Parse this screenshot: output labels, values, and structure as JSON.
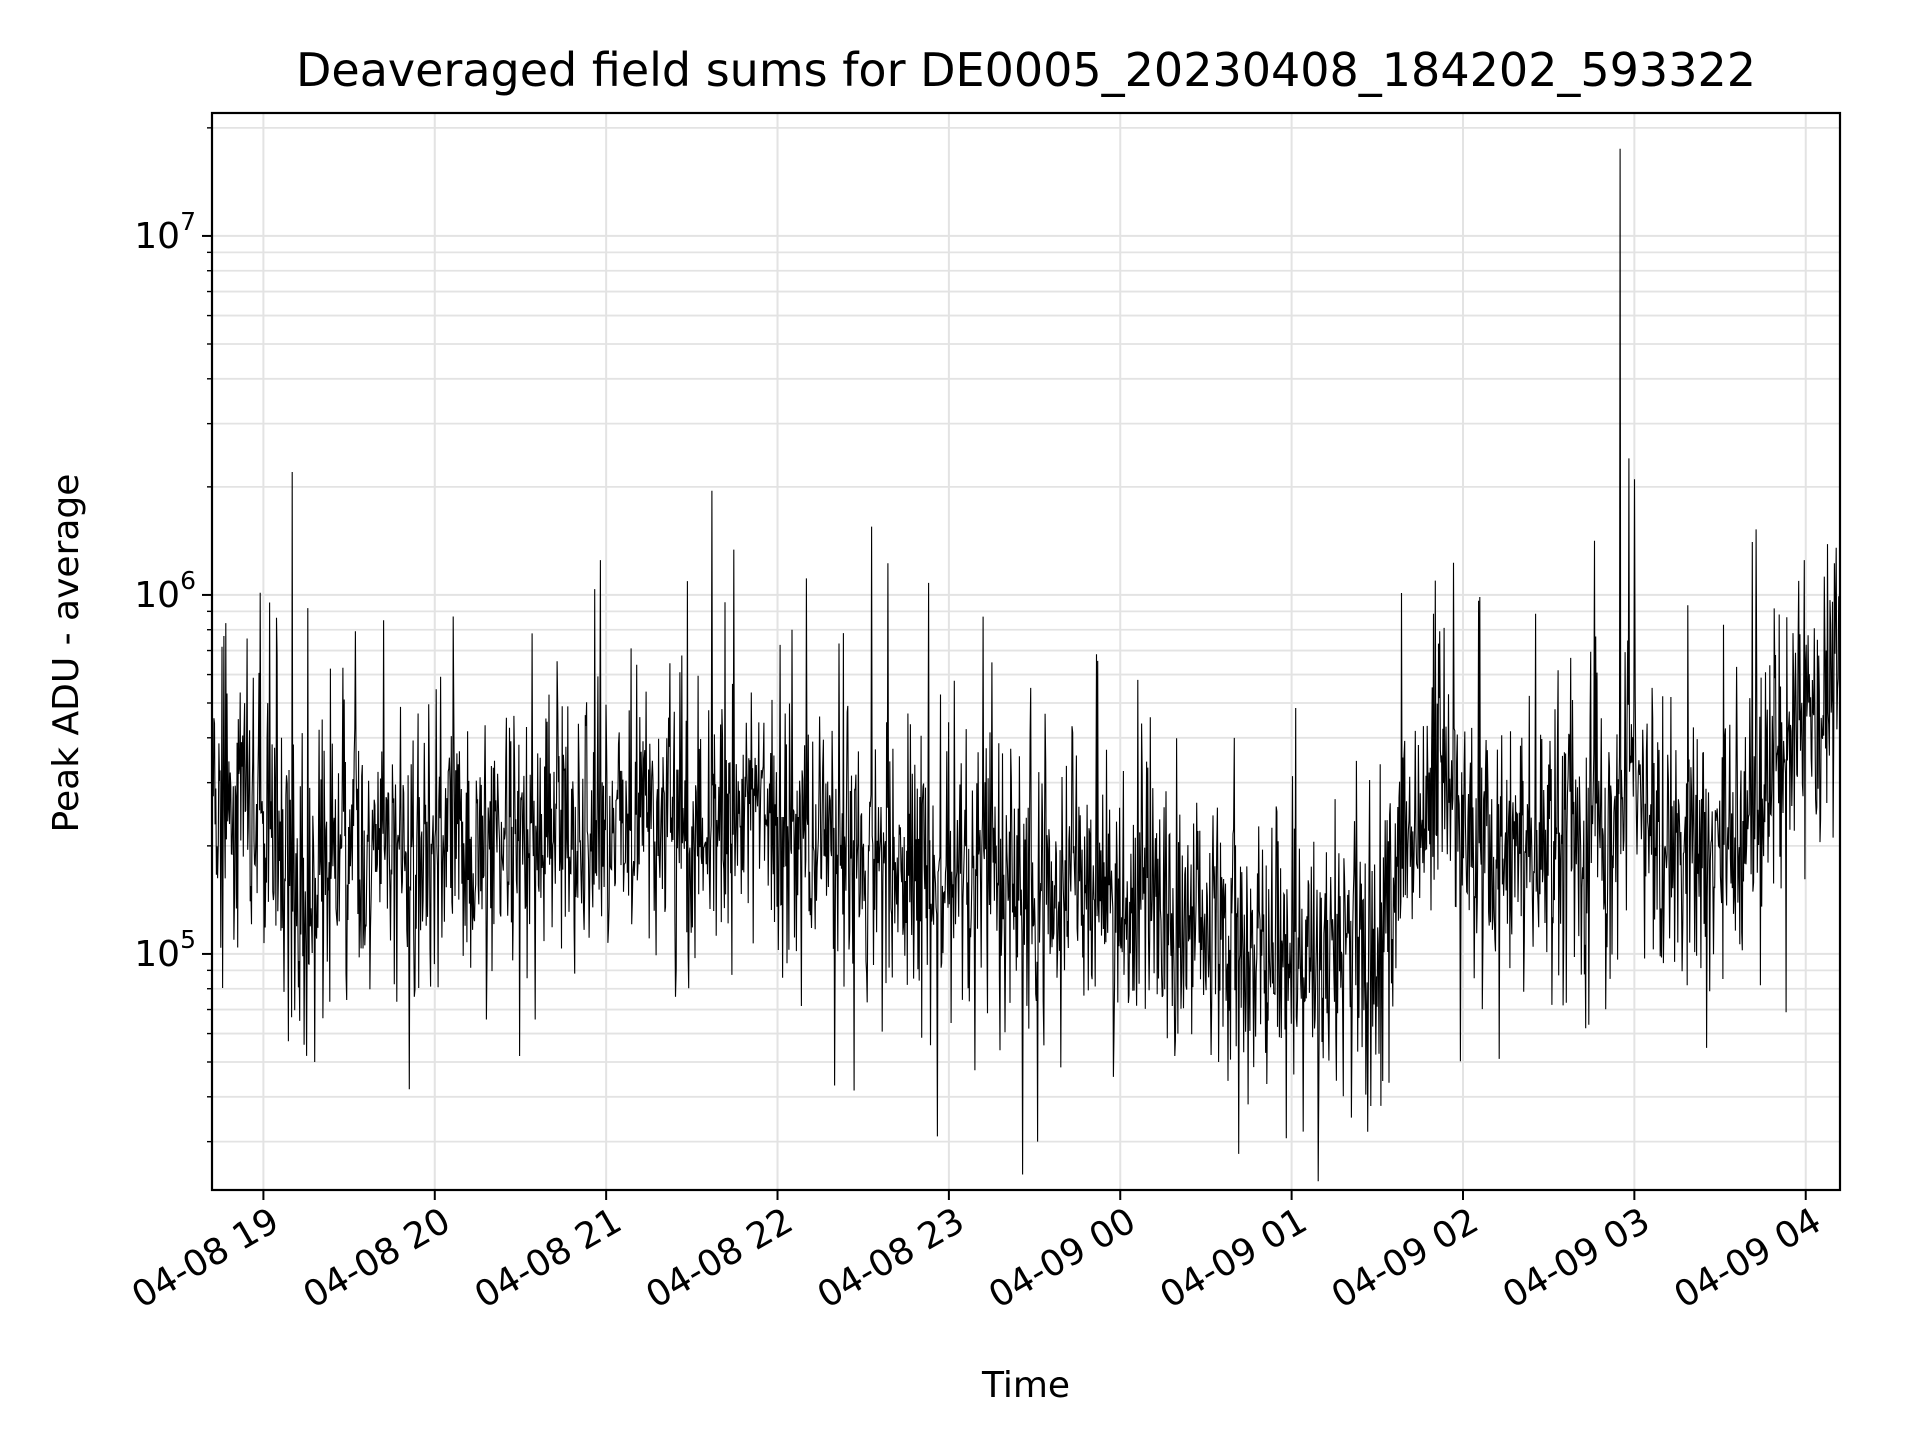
{
  "chart_data": {
    "type": "line",
    "title": "Deaveraged field sums for DE0005_20230408_184202_593322",
    "xlabel": "Time",
    "ylabel": "Peak ADU - average",
    "yscale": "log",
    "grid": true,
    "x_tick_labels": [
      "04-08 19",
      "04-08 20",
      "04-08 21",
      "04-08 22",
      "04-08 23",
      "04-09 00",
      "04-09 01",
      "04-09 02",
      "04-09 03",
      "04-09 04"
    ],
    "y_tick_labels": [
      {
        "base": "10",
        "exp": "5",
        "value": 100000
      },
      {
        "base": "10",
        "exp": "6",
        "value": 1000000
      },
      {
        "base": "10",
        "exp": "7",
        "value": 10000000
      }
    ],
    "xlim": [
      "2023-04-08 18:42",
      "2023-04-09 04:12"
    ],
    "ylim": [
      22000,
      22000000
    ],
    "line_color": "#000000",
    "baseline_trend": [
      {
        "x": "2023-04-08 18:42",
        "y": 250000
      },
      {
        "x": "2023-04-08 19:00",
        "y": 240000
      },
      {
        "x": "2023-04-08 19:15",
        "y": 130000
      },
      {
        "x": "2023-04-08 19:30",
        "y": 190000
      },
      {
        "x": "2023-04-08 20:00",
        "y": 200000
      },
      {
        "x": "2023-04-08 21:00",
        "y": 230000
      },
      {
        "x": "2023-04-08 22:00",
        "y": 230000
      },
      {
        "x": "2023-04-08 23:00",
        "y": 160000
      },
      {
        "x": "2023-04-09 00:00",
        "y": 140000
      },
      {
        "x": "2023-04-09 00:30",
        "y": 110000
      },
      {
        "x": "2023-04-09 01:00",
        "y": 90000
      },
      {
        "x": "2023-04-09 01:30",
        "y": 120000
      },
      {
        "x": "2023-04-09 01:50",
        "y": 300000
      },
      {
        "x": "2023-04-09 02:10",
        "y": 200000
      },
      {
        "x": "2023-04-09 02:50",
        "y": 200000
      },
      {
        "x": "2023-04-09 03:00",
        "y": 400000
      },
      {
        "x": "2023-04-09 03:05",
        "y": 200000
      },
      {
        "x": "2023-04-09 03:30",
        "y": 170000
      },
      {
        "x": "2023-04-09 03:45",
        "y": 300000
      },
      {
        "x": "2023-04-09 04:12",
        "y": 550000
      }
    ],
    "peaks": [
      {
        "x": "2023-04-08 19:10",
        "y": 2200000
      },
      {
        "x": "2023-04-08 19:42",
        "y": 850000
      },
      {
        "x": "2023-04-08 20:58",
        "y": 1250000
      },
      {
        "x": "2023-04-08 21:37",
        "y": 1950000
      },
      {
        "x": "2023-04-08 22:05",
        "y": 800000
      },
      {
        "x": "2023-04-08 22:33",
        "y": 1550000
      },
      {
        "x": "2023-04-08 22:53",
        "y": 1080000
      },
      {
        "x": "2023-04-08 23:12",
        "y": 870000
      },
      {
        "x": "2023-04-09 02:55",
        "y": 17500000
      },
      {
        "x": "2023-04-09 02:58",
        "y": 2400000
      },
      {
        "x": "2023-04-09 03:00",
        "y": 2100000
      }
    ],
    "dips": [
      {
        "x": "2023-04-08 19:18",
        "y": 50000
      },
      {
        "x": "2023-04-08 19:51",
        "y": 42000
      },
      {
        "x": "2023-04-08 22:20",
        "y": 43000
      },
      {
        "x": "2023-04-08 23:31",
        "y": 30000
      },
      {
        "x": "2023-04-09 01:04",
        "y": 32000
      },
      {
        "x": "2023-04-09 01:21",
        "y": 35000
      }
    ]
  }
}
